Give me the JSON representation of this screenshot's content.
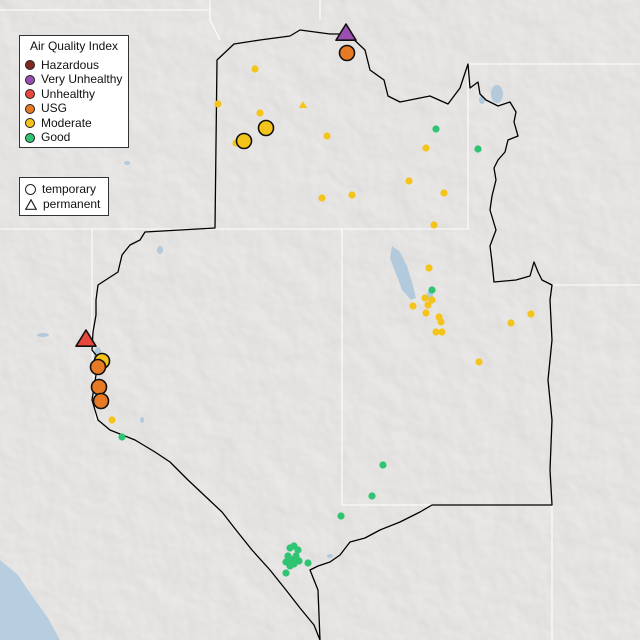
{
  "legend": {
    "title": "Air Quality Index",
    "categories": [
      {
        "key": "hazardous",
        "label": "Hazardous",
        "color": "#7e2a20"
      },
      {
        "key": "very_unhealthy",
        "label": "Very Unhealthy",
        "color": "#9b4fb0"
      },
      {
        "key": "unhealthy",
        "label": "Unhealthy",
        "color": "#e8473b"
      },
      {
        "key": "usg",
        "label": "USG",
        "color": "#e87a25"
      },
      {
        "key": "moderate",
        "label": "Moderate",
        "color": "#f5c41a"
      },
      {
        "key": "good",
        "label": "Good",
        "color": "#2fc472"
      }
    ]
  },
  "monitor_types": [
    {
      "key": "temporary",
      "label": "temporary",
      "icon": "circle-icon"
    },
    {
      "key": "permanent",
      "label": "permanent",
      "icon": "triangle-icon"
    }
  ]
}
